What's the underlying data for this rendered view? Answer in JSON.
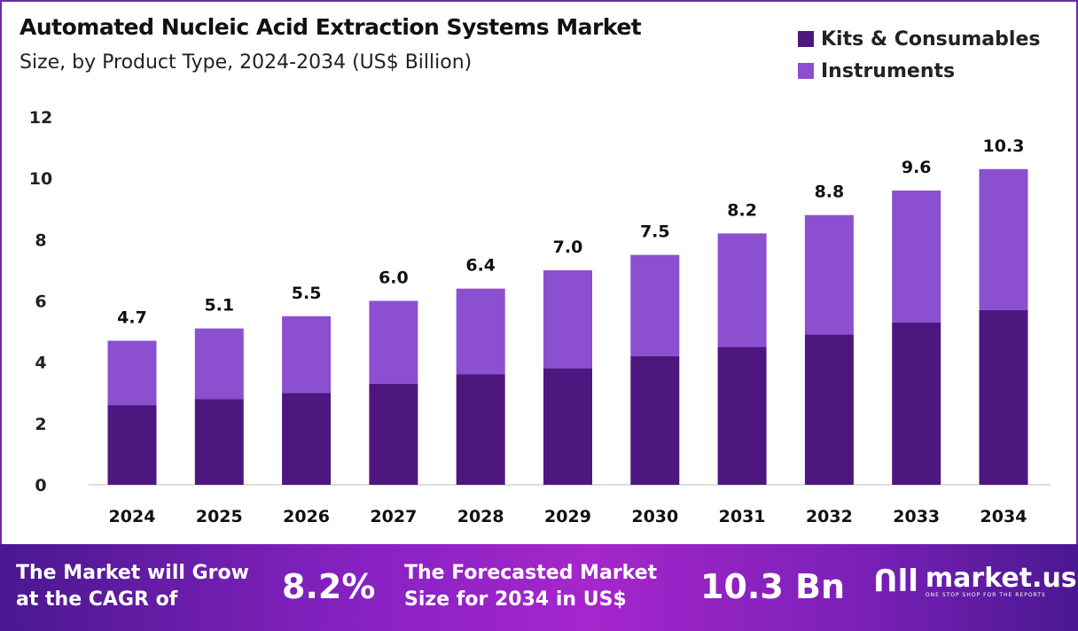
{
  "chart_data": {
    "type": "bar",
    "stacked": true,
    "title": "Automated Nucleic Acid Extraction Systems Market",
    "subtitle": "Size, by Product Type, 2024-2034 (US$ Billion)",
    "categories": [
      "2024",
      "2025",
      "2026",
      "2027",
      "2028",
      "2029",
      "2030",
      "2031",
      "2032",
      "2033",
      "2034"
    ],
    "series": [
      {
        "name": "Kits & Consumables",
        "color": "#4e167f",
        "values": [
          2.6,
          2.8,
          3.0,
          3.3,
          3.6,
          3.8,
          4.2,
          4.5,
          4.9,
          5.3,
          5.7
        ]
      },
      {
        "name": "Instruments",
        "color": "#8b4fcf",
        "values": [
          2.1,
          2.3,
          2.5,
          2.7,
          2.8,
          3.2,
          3.3,
          3.7,
          3.9,
          4.3,
          4.6
        ]
      }
    ],
    "totals": [
      "4.7",
      "5.1",
      "5.5",
      "6.0",
      "6.4",
      "7.0",
      "7.5",
      "8.2",
      "8.8",
      "9.6",
      "10.3"
    ],
    "ylim": [
      0,
      12
    ],
    "yticks": [
      "0",
      "2",
      "4",
      "6",
      "8",
      "10",
      "12"
    ],
    "grid": false,
    "legend": "top-right"
  },
  "footer": {
    "cagr_text_1": "The Market will Grow",
    "cagr_text_2": "at the CAGR of",
    "cagr_value": "8.2%",
    "forecast_text_1": "The Forecasted Market",
    "forecast_text_2": "Size for 2034 in US$",
    "forecast_value": "10.3 Bn",
    "logo_name": "market.us",
    "logo_tagline": "ONE STOP SHOP FOR THE REPORTS"
  }
}
